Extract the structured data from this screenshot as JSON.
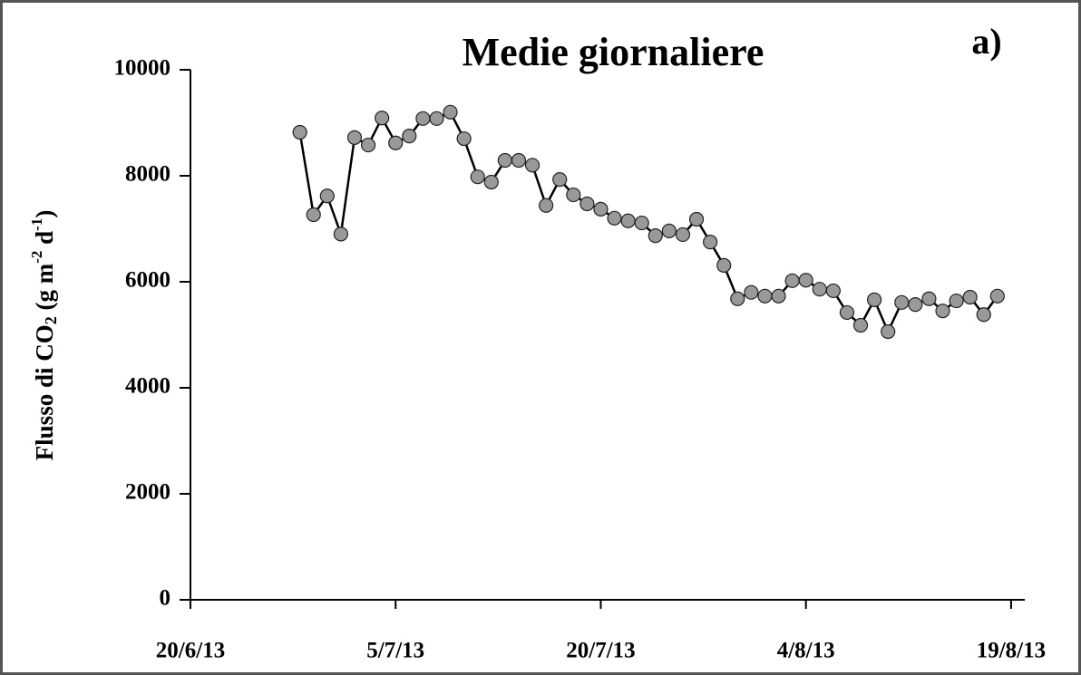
{
  "chart_data": {
    "type": "line",
    "title": "Medie giornaliere",
    "annotation": "a)",
    "y_label": [
      "Flusso di CO",
      "2",
      " (g m",
      "-2",
      " d",
      "-1",
      ")"
    ],
    "x": [
      "28/6/13",
      "29/6/13",
      "30/6/13",
      "1/7/13",
      "2/7/13",
      "3/7/13",
      "4/7/13",
      "5/7/13",
      "6/7/13",
      "7/7/13",
      "8/7/13",
      "9/7/13",
      "10/7/13",
      "11/7/13",
      "12/7/13",
      "13/7/13",
      "14/7/13",
      "15/7/13",
      "16/7/13",
      "17/7/13",
      "18/7/13",
      "19/7/13",
      "20/7/13",
      "21/7/13",
      "22/7/13",
      "23/7/13",
      "24/7/13",
      "25/7/13",
      "26/7/13",
      "27/7/13",
      "28/7/13",
      "29/7/13",
      "30/7/13",
      "31/7/13",
      "1/8/13",
      "2/8/13",
      "3/8/13",
      "4/8/13",
      "5/8/13",
      "6/8/13",
      "7/8/13",
      "8/8/13",
      "9/8/13",
      "10/8/13",
      "11/8/13",
      "12/8/13",
      "13/8/13",
      "14/8/13",
      "15/8/13",
      "16/8/13",
      "17/8/13",
      "18/8/13"
    ],
    "values": [
      8820,
      7265,
      7620,
      6900,
      8720,
      8580,
      9090,
      8620,
      8750,
      9080,
      9080,
      9200,
      8700,
      7980,
      7880,
      8290,
      8290,
      8200,
      7440,
      7930,
      7640,
      7470,
      7370,
      7200,
      7150,
      7110,
      6870,
      6960,
      6890,
      7180,
      6750,
      6310,
      5680,
      5800,
      5730,
      5730,
      6020,
      6030,
      5860,
      5830,
      5420,
      5180,
      5660,
      5060,
      5610,
      5570,
      5680,
      5450,
      5640,
      5710,
      5380,
      5730
    ],
    "color": "#999999",
    "line_color": "#000000",
    "xlim": [
      "20/6/13",
      "20/8/13"
    ],
    "xticks": [
      "20/6/13",
      "5/7/13",
      "20/7/13",
      "4/8/13",
      "19/8/13"
    ],
    "ylim": [
      0,
      10000
    ],
    "yticks": [
      0,
      2000,
      4000,
      6000,
      8000,
      10000
    ]
  }
}
